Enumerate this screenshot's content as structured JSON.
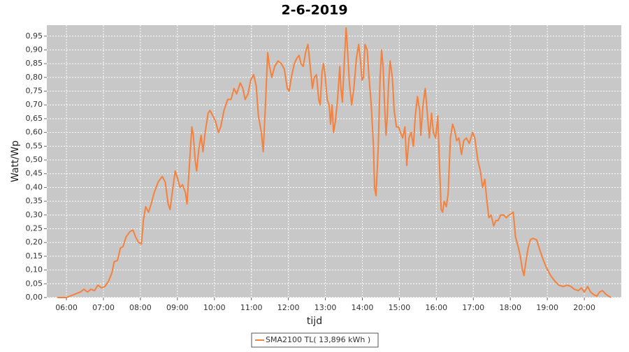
{
  "chart_data": {
    "type": "line",
    "title": "2-6-2019",
    "x_label": "tijd",
    "y_label": "Watt/Wp",
    "xlim": [
      5.47,
      21.0
    ],
    "ylim": [
      0,
      0.99
    ],
    "grid": true,
    "legend": "bottom",
    "xticks": [
      {
        "value": 6,
        "label": "06:00"
      },
      {
        "value": 7,
        "label": "07:00"
      },
      {
        "value": 8,
        "label": "08:00"
      },
      {
        "value": 9,
        "label": "09:00"
      },
      {
        "value": 10,
        "label": "10:00"
      },
      {
        "value": 11,
        "label": "11:00"
      },
      {
        "value": 12,
        "label": "12:00"
      },
      {
        "value": 13,
        "label": "13:00"
      },
      {
        "value": 14,
        "label": "14:00"
      },
      {
        "value": 15,
        "label": "15:00"
      },
      {
        "value": 16,
        "label": "16:00"
      },
      {
        "value": 17,
        "label": "17:00"
      },
      {
        "value": 18,
        "label": "18:00"
      },
      {
        "value": 19,
        "label": "19:00"
      },
      {
        "value": 20,
        "label": "20:00"
      }
    ],
    "yticks": [
      {
        "value": 0,
        "label": "0,00"
      },
      {
        "value": 0.05,
        "label": "0,05"
      },
      {
        "value": 0.1,
        "label": "0,10"
      },
      {
        "value": 0.15,
        "label": "0,15"
      },
      {
        "value": 0.2,
        "label": "0,20"
      },
      {
        "value": 0.25,
        "label": "0,25"
      },
      {
        "value": 0.3,
        "label": "0,30"
      },
      {
        "value": 0.35,
        "label": "0,35"
      },
      {
        "value": 0.4,
        "label": "0,40"
      },
      {
        "value": 0.45,
        "label": "0,45"
      },
      {
        "value": 0.5,
        "label": "0,50"
      },
      {
        "value": 0.55,
        "label": "0,55"
      },
      {
        "value": 0.6,
        "label": "0,60"
      },
      {
        "value": 0.65,
        "label": "0,65"
      },
      {
        "value": 0.7,
        "label": "0,70"
      },
      {
        "value": 0.75,
        "label": "0,75"
      },
      {
        "value": 0.8,
        "label": "0,80"
      },
      {
        "value": 0.85,
        "label": "0,85"
      },
      {
        "value": 0.9,
        "label": "0,90"
      },
      {
        "value": 0.95,
        "label": "0,95"
      }
    ],
    "x": [
      5.75,
      6.0,
      6.09,
      6.19,
      6.28,
      6.38,
      6.47,
      6.57,
      6.66,
      6.76,
      6.85,
      6.95,
      7.04,
      7.14,
      7.23,
      7.29,
      7.38,
      7.46,
      7.53,
      7.61,
      7.72,
      7.8,
      7.87,
      7.95,
      8.03,
      8.08,
      8.14,
      8.22,
      8.29,
      8.37,
      8.48,
      8.59,
      8.67,
      8.75,
      8.8,
      8.86,
      8.94,
      9.01,
      9.07,
      9.14,
      9.22,
      9.26,
      9.31,
      9.39,
      9.43,
      9.48,
      9.52,
      9.58,
      9.64,
      9.69,
      9.75,
      9.83,
      9.88,
      9.96,
      10.03,
      10.11,
      10.17,
      10.26,
      10.36,
      10.45,
      10.53,
      10.6,
      10.7,
      10.77,
      10.83,
      10.91,
      10.98,
      11.06,
      11.13,
      11.19,
      11.27,
      11.32,
      11.38,
      11.44,
      11.49,
      11.55,
      11.63,
      11.72,
      11.81,
      11.89,
      11.97,
      12.02,
      12.08,
      12.16,
      12.23,
      12.29,
      12.34,
      12.4,
      12.48,
      12.53,
      12.59,
      12.65,
      12.7,
      12.76,
      12.82,
      12.86,
      12.91,
      12.95,
      12.99,
      13.05,
      13.1,
      13.14,
      13.18,
      13.22,
      13.27,
      13.33,
      13.39,
      13.42,
      13.46,
      13.52,
      13.56,
      13.59,
      13.65,
      13.71,
      13.77,
      13.84,
      13.9,
      13.95,
      13.99,
      14.03,
      14.07,
      14.13,
      14.18,
      14.24,
      14.3,
      14.33,
      14.37,
      14.43,
      14.48,
      14.52,
      14.56,
      14.6,
      14.64,
      14.67,
      14.71,
      14.75,
      14.81,
      14.86,
      14.92,
      14.98,
      15.03,
      15.09,
      15.15,
      15.2,
      15.26,
      15.32,
      15.38,
      15.43,
      15.49,
      15.55,
      15.58,
      15.64,
      15.7,
      15.75,
      15.81,
      15.87,
      15.92,
      15.98,
      16.04,
      16.08,
      16.13,
      16.17,
      16.21,
      16.27,
      16.32,
      16.38,
      16.44,
      16.49,
      16.55,
      16.61,
      16.68,
      16.74,
      16.81,
      16.89,
      16.98,
      17.04,
      17.12,
      17.19,
      17.25,
      17.31,
      17.36,
      17.42,
      17.48,
      17.55,
      17.61,
      17.67,
      17.74,
      17.82,
      17.89,
      17.97,
      18.08,
      18.14,
      18.22,
      18.27,
      18.33,
      18.37,
      18.42,
      18.48,
      18.54,
      18.61,
      18.71,
      18.78,
      18.88,
      18.97,
      19.09,
      19.2,
      19.31,
      19.43,
      19.54,
      19.64,
      19.73,
      19.84,
      19.92,
      20.0,
      20.09,
      20.17,
      20.26,
      20.34,
      20.41,
      20.49,
      20.6,
      20.72
    ],
    "series": [
      {
        "name": "SMA2100 TL( 13,896 kWh )",
        "color": "#f5813c",
        "values": [
          0,
          0,
          0.005,
          0.01,
          0.015,
          0.02,
          0.03,
          0.02,
          0.03,
          0.025,
          0.045,
          0.035,
          0.04,
          0.06,
          0.09,
          0.13,
          0.135,
          0.18,
          0.185,
          0.22,
          0.24,
          0.245,
          0.22,
          0.2,
          0.195,
          0.28,
          0.33,
          0.31,
          0.34,
          0.38,
          0.42,
          0.44,
          0.42,
          0.34,
          0.32,
          0.38,
          0.46,
          0.43,
          0.4,
          0.41,
          0.38,
          0.34,
          0.45,
          0.62,
          0.59,
          0.5,
          0.46,
          0.54,
          0.59,
          0.53,
          0.6,
          0.67,
          0.68,
          0.66,
          0.64,
          0.6,
          0.62,
          0.68,
          0.72,
          0.72,
          0.76,
          0.74,
          0.78,
          0.76,
          0.72,
          0.74,
          0.79,
          0.81,
          0.77,
          0.66,
          0.6,
          0.53,
          0.7,
          0.89,
          0.84,
          0.8,
          0.84,
          0.86,
          0.85,
          0.83,
          0.76,
          0.75,
          0.8,
          0.85,
          0.87,
          0.88,
          0.85,
          0.84,
          0.9,
          0.92,
          0.84,
          0.76,
          0.8,
          0.81,
          0.72,
          0.7,
          0.82,
          0.85,
          0.81,
          0.72,
          0.7,
          0.63,
          0.7,
          0.6,
          0.64,
          0.72,
          0.84,
          0.76,
          0.71,
          0.88,
          0.98,
          0.92,
          0.78,
          0.7,
          0.76,
          0.87,
          0.92,
          0.86,
          0.79,
          0.8,
          0.92,
          0.9,
          0.8,
          0.7,
          0.55,
          0.4,
          0.37,
          0.55,
          0.8,
          0.9,
          0.84,
          0.7,
          0.59,
          0.65,
          0.78,
          0.86,
          0.8,
          0.68,
          0.62,
          0.62,
          0.6,
          0.58,
          0.62,
          0.48,
          0.58,
          0.6,
          0.55,
          0.66,
          0.73,
          0.68,
          0.59,
          0.7,
          0.76,
          0.68,
          0.58,
          0.67,
          0.6,
          0.58,
          0.66,
          0.5,
          0.32,
          0.31,
          0.35,
          0.33,
          0.38,
          0.58,
          0.63,
          0.61,
          0.57,
          0.58,
          0.52,
          0.57,
          0.58,
          0.56,
          0.6,
          0.58,
          0.5,
          0.46,
          0.4,
          0.43,
          0.36,
          0.29,
          0.3,
          0.26,
          0.28,
          0.28,
          0.3,
          0.3,
          0.29,
          0.3,
          0.31,
          0.22,
          0.18,
          0.15,
          0.1,
          0.08,
          0.13,
          0.18,
          0.21,
          0.215,
          0.21,
          0.18,
          0.14,
          0.11,
          0.08,
          0.06,
          0.045,
          0.04,
          0.045,
          0.04,
          0.03,
          0.025,
          0.035,
          0.02,
          0.04,
          0.02,
          0.01,
          0.005,
          0.02,
          0.025,
          0.01,
          0
        ]
      }
    ]
  }
}
